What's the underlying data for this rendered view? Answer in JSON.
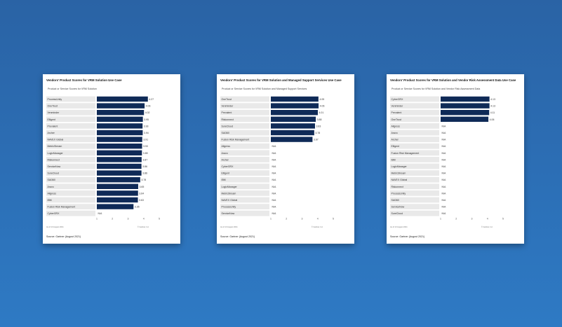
{
  "colors": {
    "bar": "#0f2a57",
    "label_band": "#e9e9e9",
    "background": "#2c6fb6"
  },
  "cards": [
    {
      "title": "Vendors' Product Scores for VRM Solution Use Case",
      "subtitle": "Product or Service Scores for VRM Solution",
      "footer_left": "As of 13 August 2021",
      "footer_right": "© Gartner, Inc",
      "source": "Source: Gartner (August 2021)"
    },
    {
      "title": "Vendors' Product Scores for VRM Solution and Managed Support Services Use Case",
      "subtitle": "Product or Service Scores for VRM Solution and Managed Support Services",
      "footer_left": "As of 13 August 2021",
      "footer_right": "© Gartner, Inc",
      "source": "Source: Gartner (August 2021)"
    },
    {
      "title": "Vendors' Product Scores for VRM Solution and Vendor Risk Assessment Data Use Case",
      "subtitle": "Product or Service Scores for VRM Solution and Vendor Risk Assessment Data",
      "footer_left": "As of 13 August 2021",
      "footer_right": "© Gartner, Inc",
      "source": "Source: Gartner (August 2021)"
    }
  ],
  "chart_data": [
    {
      "type": "bar",
      "orientation": "horizontal",
      "title": "Vendors' Product Scores for VRM Solution Use Case",
      "subtitle": "Product or Service Scores for VRM Solution",
      "xlim": [
        1,
        5
      ],
      "ticks": [
        "1",
        "2",
        "3",
        "4",
        "5"
      ],
      "categories": [
        "ProcessUnity",
        "OneTrust",
        "Venminder",
        "Elligent",
        "Prevalent",
        "Archer",
        "NAVEX Global",
        "MetricStream",
        "LogicManager",
        "Riskonnect",
        "ServiceNow",
        "SureCloud",
        "SAI360",
        "Aravo",
        "Allgress",
        "IBM",
        "Fusion Risk Management",
        "CyberGRX"
      ],
      "values": [
        4.27,
        4.06,
        4.02,
        3.95,
        3.93,
        3.94,
        3.91,
        3.9,
        3.89,
        3.87,
        3.86,
        3.86,
        3.78,
        3.65,
        3.64,
        3.63,
        3.35,
        null
      ],
      "labels": [
        "4.27",
        "4.06",
        "4.02",
        "3.95",
        "3.93",
        "3.94",
        "3.91",
        "3.90",
        "3.89",
        "3.87",
        "3.86",
        "3.86",
        "3.78",
        "3.65",
        "3.64",
        "3.63",
        "3.35",
        "N/A"
      ]
    },
    {
      "type": "bar",
      "orientation": "horizontal",
      "title": "Vendors' Product Scores for VRM Solution and Managed Support Services Use Case",
      "subtitle": "Product or Service Scores for VRM Solution and Managed Support Services",
      "xlim": [
        1,
        5
      ],
      "ticks": [
        "1",
        "2",
        "3",
        "4",
        "5"
      ],
      "categories": [
        "OneTrust",
        "Venminder",
        "Prevalent",
        "Riskonnect",
        "SureCloud",
        "SAI360",
        "Fusion Risk Management",
        "Allgress",
        "Aravo",
        "Archer",
        "CyberGRX",
        "Elligent",
        "IBM",
        "LogicManager",
        "MetricStream",
        "NAVEX Global",
        "ProcessUnity",
        "ServiceNow"
      ],
      "values": [
        4.05,
        4.06,
        4.01,
        3.88,
        3.83,
        3.78,
        3.67,
        null,
        null,
        null,
        null,
        null,
        null,
        null,
        null,
        null,
        null,
        null
      ],
      "labels": [
        "4.05",
        "4.06",
        "4.01",
        "3.88",
        "3.83",
        "3.78",
        "3.67",
        "N/A",
        "N/A",
        "N/A",
        "N/A",
        "N/A",
        "N/A",
        "N/A",
        "N/A",
        "N/A",
        "N/A",
        "N/A"
      ]
    },
    {
      "type": "bar",
      "orientation": "horizontal",
      "title": "Vendors' Product Scores for VRM Solution and Vendor Risk Assessment Data Use Case",
      "subtitle": "Product or Service Scores for VRM Solution and Vendor Risk Assessment Data",
      "xlim": [
        1,
        5
      ],
      "ticks": [
        "1",
        "2",
        "3",
        "4",
        "5"
      ],
      "categories": [
        "CyberGRX",
        "Venminder",
        "Prevalent",
        "OneTrust",
        "Allgress",
        "Aravo",
        "Archer",
        "Elligent",
        "Fusion Risk Management",
        "IBM",
        "LogicManager",
        "MetricStream",
        "NAVEX Global",
        "Riskonnect",
        "ProcessUnity",
        "SAI360",
        "ServiceNow",
        "SureCloud"
      ],
      "values": [
        4.13,
        4.13,
        4.11,
        4.06,
        null,
        null,
        null,
        null,
        null,
        null,
        null,
        null,
        null,
        null,
        null,
        null,
        null,
        null
      ],
      "labels": [
        "4.13",
        "4.13",
        "4.11",
        "4.06",
        "N/A",
        "N/A",
        "N/A",
        "N/A",
        "N/A",
        "N/A",
        "N/A",
        "N/A",
        "N/A",
        "N/A",
        "N/A",
        "N/A",
        "N/A",
        "N/A"
      ]
    }
  ]
}
